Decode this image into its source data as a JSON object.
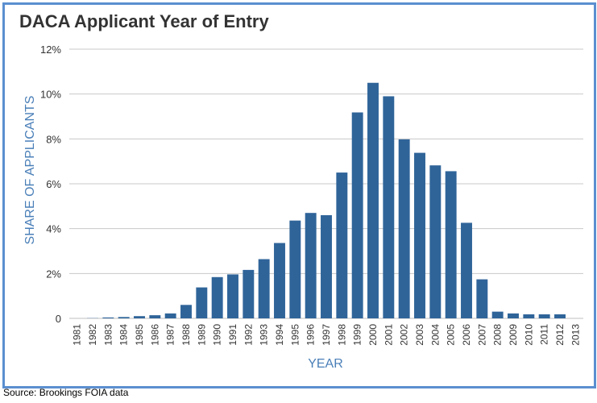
{
  "chart_data": {
    "type": "bar",
    "title": "DACA Applicant Year of Entry",
    "xlabel": "YEAR",
    "ylabel": "SHARE OF APPLICANTS",
    "categories": [
      "1981",
      "1982",
      "1983",
      "1984",
      "1985",
      "1986",
      "1987",
      "1988",
      "1989",
      "1990",
      "1991",
      "1992",
      "1993",
      "1994",
      "1995",
      "1996",
      "1997",
      "1998",
      "1999",
      "2000",
      "2001",
      "2002",
      "2003",
      "2004",
      "2005",
      "2006",
      "2007",
      "2008",
      "2009",
      "2010",
      "2011",
      "2012",
      "2013"
    ],
    "values": [
      0.0,
      0.01,
      0.04,
      0.06,
      0.1,
      0.14,
      0.22,
      0.6,
      1.38,
      1.84,
      1.96,
      2.16,
      2.64,
      3.36,
      4.36,
      4.7,
      4.6,
      6.5,
      9.18,
      10.5,
      9.9,
      7.98,
      7.38,
      6.82,
      6.56,
      4.26,
      1.74,
      0.3,
      0.22,
      0.18,
      0.18,
      0.18,
      0.0
    ],
    "ylim": [
      0,
      12
    ],
    "yticks": [
      0,
      2,
      4,
      6,
      8,
      10,
      12
    ],
    "ytick_labels": [
      "0",
      "2%",
      "4%",
      "6%",
      "8%",
      "10%",
      "12%"
    ],
    "grid": true,
    "bar_color": "#2f6499",
    "label_color": "#4a7fb8"
  },
  "source": "Source: Brookings FOIA data"
}
